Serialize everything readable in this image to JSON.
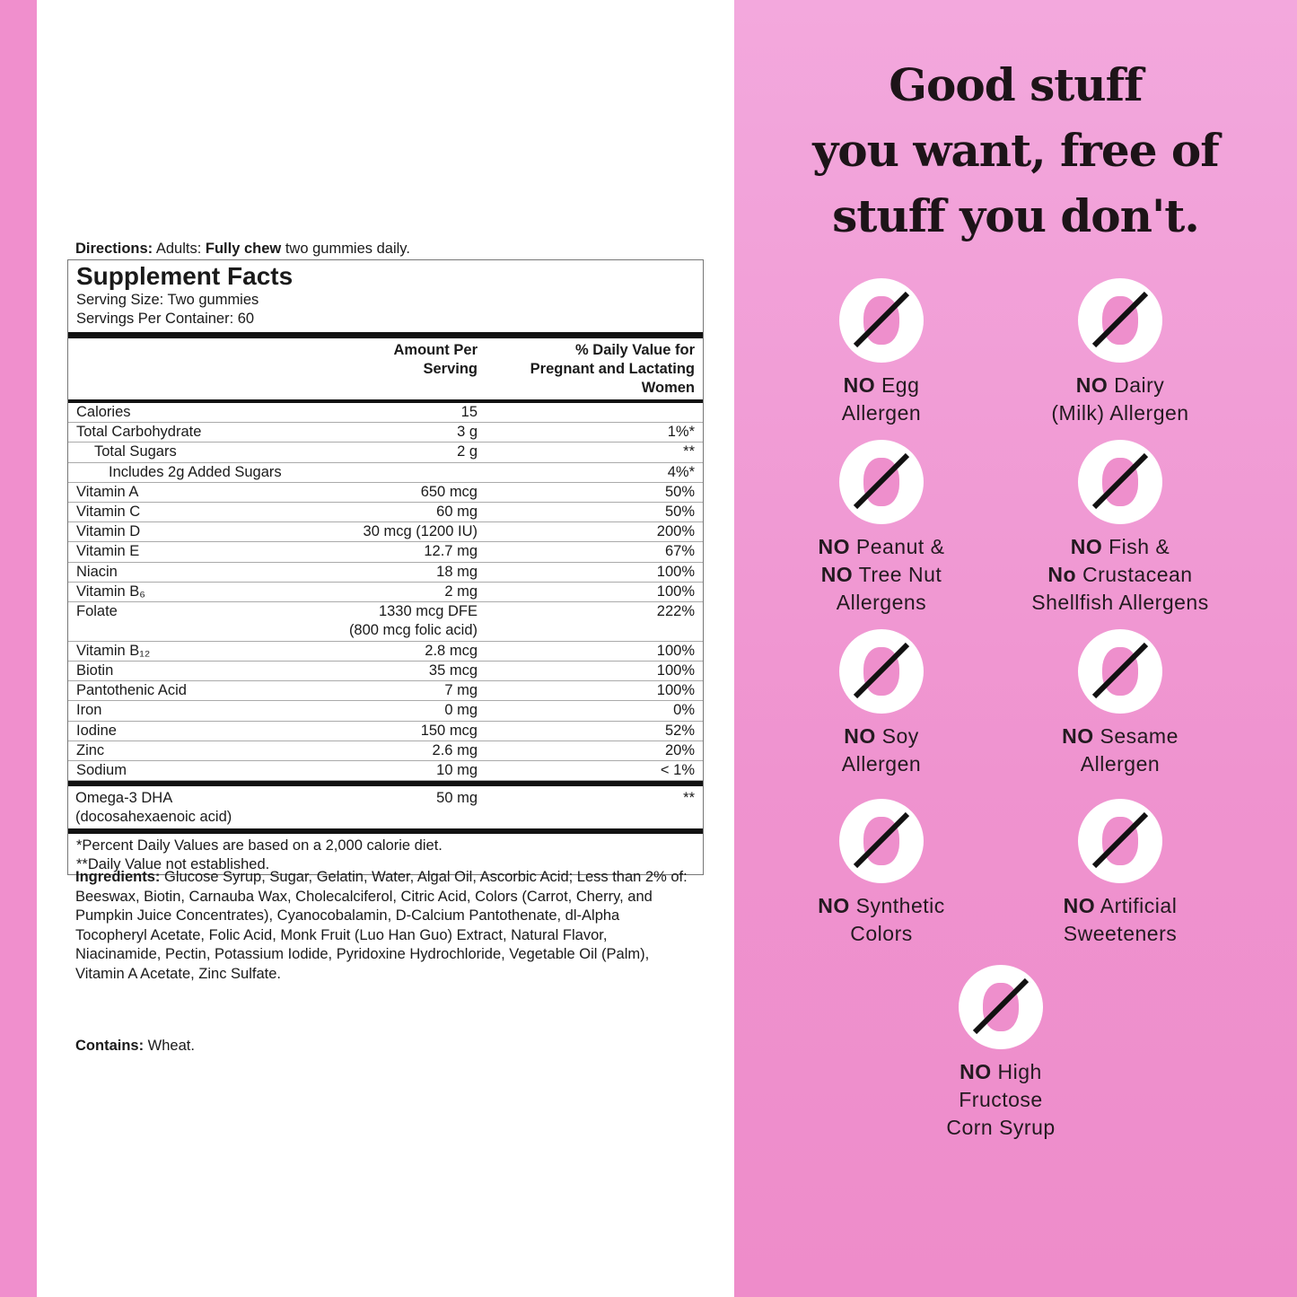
{
  "directions": {
    "label": "Directions:",
    "pre": " Adults: ",
    "bold": "Fully chew",
    "post": " two gummies daily."
  },
  "facts": {
    "title": "Supplement Facts",
    "serving_size": "Serving Size: Two gummies",
    "servings_per_container": "Servings Per Container: 60",
    "col_amount": "Amount Per\nServing",
    "col_dv": "% Daily Value for\nPregnant and Lactating\nWomen",
    "rows": [
      {
        "name": "Calories",
        "amount": "15",
        "dv": ""
      },
      {
        "name": "Total Carbohydrate",
        "amount": "3 g",
        "dv": "1%*"
      },
      {
        "name": "Total Sugars",
        "amount": "2 g",
        "dv": "**",
        "indent": 1
      },
      {
        "name": "Includes 2g Added Sugars",
        "amount": "",
        "dv": "4%*",
        "indent": 2
      },
      {
        "name": "Vitamin A",
        "amount": "650 mcg",
        "dv": "50%"
      },
      {
        "name": "Vitamin C",
        "amount": "60 mg",
        "dv": "50%"
      },
      {
        "name": "Vitamin D",
        "amount": "30 mcg (1200 IU)",
        "dv": "200%"
      },
      {
        "name": "Vitamin E",
        "amount": "12.7 mg",
        "dv": "67%"
      },
      {
        "name": "Niacin",
        "amount": "18 mg",
        "dv": "100%"
      },
      {
        "name": "Vitamin B₆",
        "amount": "2 mg",
        "dv": "100%"
      },
      {
        "name": "Folate",
        "amount": "1330 mcg DFE\n(800 mcg folic acid)",
        "dv": "222%",
        "double": true
      },
      {
        "name": "Vitamin B₁₂",
        "amount": "2.8 mcg",
        "dv": "100%"
      },
      {
        "name": "Biotin",
        "amount": "35 mcg",
        "dv": "100%"
      },
      {
        "name": "Pantothenic Acid",
        "amount": "7 mg",
        "dv": "100%"
      },
      {
        "name": "Iron",
        "amount": "0 mg",
        "dv": "0%"
      },
      {
        "name": "Iodine",
        "amount": "150 mcg",
        "dv": "52%"
      },
      {
        "name": "Zinc",
        "amount": "2.6 mg",
        "dv": "20%"
      },
      {
        "name": "Sodium",
        "amount": "10 mg",
        "dv": "< 1%"
      }
    ],
    "omega": {
      "name": "Omega-3 DHA\n   (docosahexaenoic acid)",
      "amount": "50 mg",
      "dv": "**"
    },
    "footnote1": "*Percent Daily Values are based on a 2,000 calorie diet.",
    "footnote2": "**Daily Value not established."
  },
  "ingredients": {
    "label": "Ingredients:",
    "text": " Glucose Syrup, Sugar, Gelatin, Water, Algal Oil, Ascorbic Acid; Less than 2% of: Beeswax, Biotin, Carnauba Wax, Cholecalciferol, Citric Acid, Colors (Carrot, Cherry, and Pumpkin Juice Concentrates), Cyanocobalamin, D-Calcium Pantothenate, dl-Alpha Tocopheryl Acetate, Folic Acid, Monk Fruit (Luo Han Guo) Extract, Natural Flavor, Niacinamide, Pectin, Potassium Iodide, Pyridoxine Hydrochloride, Vegetable Oil (Palm), Vitamin A Acetate, Zinc Sulfate."
  },
  "contains": {
    "label": "Contains:",
    "text": " Wheat."
  },
  "headline": [
    "Good stuff",
    "you want, free of",
    "stuff you don't."
  ],
  "colors": {
    "pink": "#f08fcd",
    "icon_pink": "#ee8fcc",
    "slash": "#111111"
  },
  "badges": [
    {
      "icon": "no-egg-icon",
      "lines": [
        [
          "NO",
          " Egg"
        ],
        [
          "",
          "Allergen"
        ]
      ]
    },
    {
      "icon": "no-dairy-icon",
      "lines": [
        [
          "NO",
          " Dairy"
        ],
        [
          "",
          "(Milk) Allergen"
        ]
      ]
    },
    {
      "icon": "no-peanut-icon",
      "lines": [
        [
          "NO",
          " Peanut &"
        ],
        [
          "NO",
          " Tree Nut"
        ],
        [
          "",
          "Allergens"
        ]
      ]
    },
    {
      "icon": "no-fish-icon",
      "lines": [
        [
          "NO",
          " Fish &"
        ],
        [
          "No",
          " Crustacean"
        ],
        [
          "",
          "Shellfish Allergens"
        ]
      ]
    },
    {
      "icon": "no-soy-icon",
      "lines": [
        [
          "NO",
          " Soy"
        ],
        [
          "",
          "Allergen"
        ]
      ]
    },
    {
      "icon": "no-sesame-icon",
      "lines": [
        [
          "NO",
          " Sesame"
        ],
        [
          "",
          "Allergen"
        ]
      ]
    },
    {
      "icon": "no-synthetic-colors-icon",
      "lines": [
        [
          "NO",
          " Synthetic"
        ],
        [
          "",
          "Colors"
        ]
      ]
    },
    {
      "icon": "no-artificial-sweeteners-icon",
      "lines": [
        [
          "NO",
          " Artificial"
        ],
        [
          "",
          "Sweeteners"
        ]
      ]
    },
    {
      "icon": "no-corn-syrup-icon",
      "lines": [
        [
          "NO",
          " High"
        ],
        [
          "",
          "Fructose"
        ],
        [
          "",
          "Corn Syrup"
        ]
      ]
    }
  ]
}
